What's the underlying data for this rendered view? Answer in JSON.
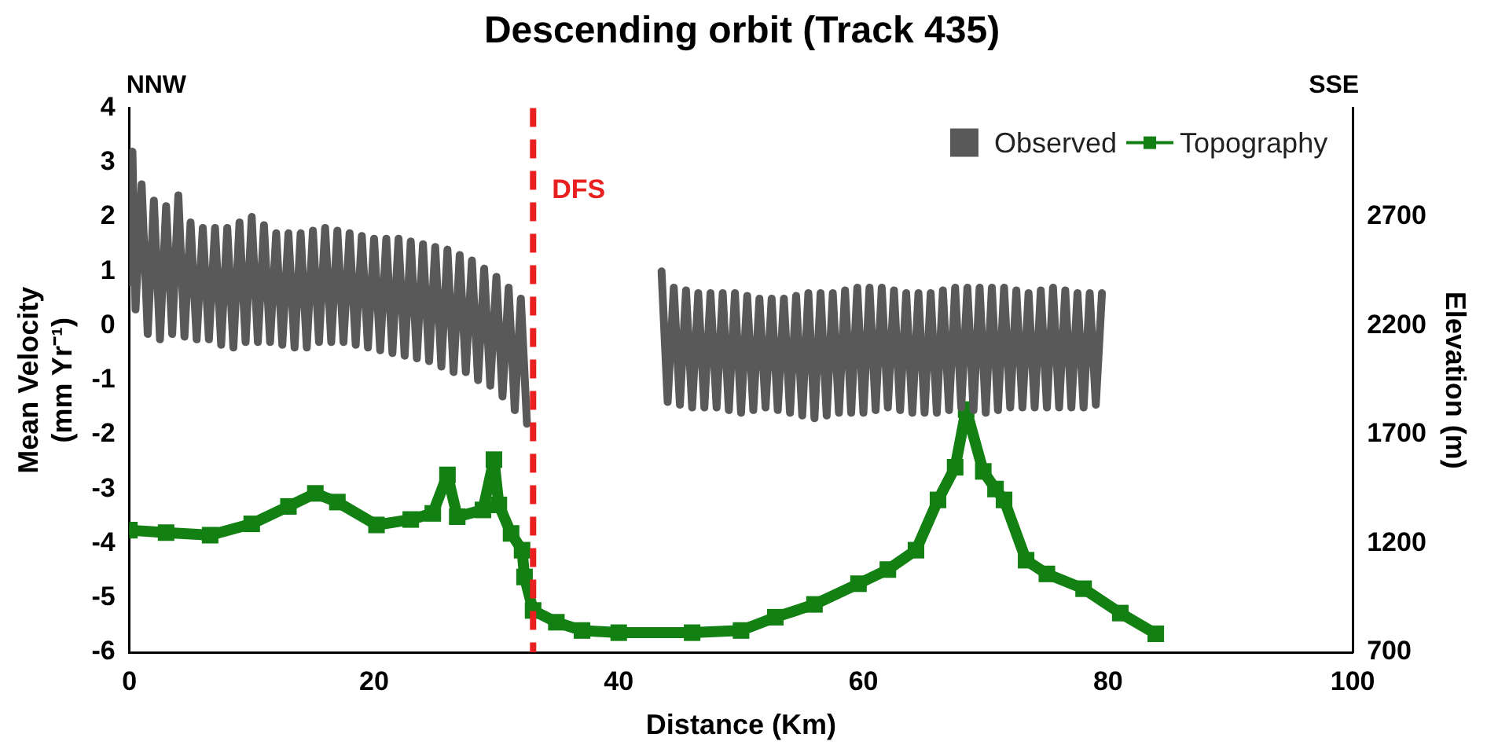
{
  "chart_data": {
    "type": "line",
    "title": "Descending orbit (Track 435)",
    "xlabel": "Distance (Km)",
    "ylabel": "Mean Velocity\n(mm Yr⁻¹)",
    "y2label": "Elevation (m)",
    "annotations": [
      "NNW",
      "SSE"
    ],
    "xlim": [
      0,
      100
    ],
    "xticks": [
      0,
      20,
      40,
      60,
      80,
      100
    ],
    "ylim": [
      -6,
      4
    ],
    "yticks": [
      -6,
      -5,
      -4,
      -3,
      -2,
      -1,
      0,
      1,
      2,
      3,
      4
    ],
    "y2lim": [
      700,
      3200
    ],
    "y2ticks": [
      700,
      1200,
      1700,
      2200,
      2700
    ],
    "grid": false,
    "legend": "top right",
    "ref_lines": [
      {
        "axis": "x",
        "value": 33,
        "label": "DFS",
        "color": "#e8201f",
        "line_style": "dashed"
      }
    ],
    "series": [
      {
        "name": "Observed",
        "color": "#595959",
        "marker": "none",
        "x": [
          0,
          0.25,
          0.5,
          1,
          1.5,
          2,
          2.5,
          3,
          3.5,
          4,
          4.5,
          5,
          5.5,
          6,
          6.5,
          7,
          7.5,
          8,
          8.5,
          9,
          9.5,
          10,
          10.5,
          11,
          11.5,
          12,
          12.5,
          13,
          13.5,
          14,
          14.5,
          15,
          15.5,
          16,
          16.5,
          17,
          17.5,
          18,
          18.5,
          19,
          19.5,
          20,
          20.5,
          21,
          21.5,
          22,
          22.5,
          23,
          23.5,
          24,
          24.5,
          25,
          25.5,
          26,
          26.5,
          27,
          27.5,
          28,
          28.5,
          29,
          29.5,
          30,
          30.5,
          31,
          31.5,
          32,
          32.5,
          38,
          43.5,
          44,
          44.5,
          45,
          45.5,
          46,
          46.5,
          47,
          47.5,
          48,
          48.5,
          49,
          49.5,
          50,
          50.5,
          51,
          51.5,
          52,
          52.5,
          53,
          53.5,
          54,
          54.5,
          55,
          55.5,
          56,
          56.5,
          57,
          57.5,
          58,
          58.5,
          59,
          59.5,
          60,
          60.5,
          61,
          61.5,
          62,
          62.5,
          63,
          63.5,
          64,
          64.5,
          65,
          65.5,
          66,
          66.5,
          67,
          67.5,
          68,
          68.5,
          69,
          69.5,
          70,
          70.5,
          71,
          71.5,
          72,
          72.5,
          73,
          73.5,
          74,
          74.5,
          75,
          75.5,
          76,
          76.5,
          77,
          77.5,
          78,
          78.5,
          79,
          79.5
        ],
        "values": [
          0.8,
          3.2,
          0.3,
          2.6,
          -0.15,
          2.3,
          -0.25,
          2.2,
          -0.15,
          2.4,
          -0.2,
          1.9,
          -0.25,
          1.8,
          -0.25,
          1.8,
          -0.35,
          1.8,
          -0.4,
          1.9,
          -0.3,
          2.0,
          -0.3,
          1.85,
          -0.3,
          1.7,
          -0.35,
          1.7,
          -0.4,
          1.7,
          -0.4,
          1.75,
          -0.3,
          1.8,
          -0.3,
          1.75,
          -0.3,
          1.7,
          -0.35,
          1.65,
          -0.4,
          1.6,
          -0.45,
          1.6,
          -0.5,
          1.6,
          -0.55,
          1.55,
          -0.6,
          1.5,
          -0.65,
          1.45,
          -0.75,
          1.4,
          -0.85,
          1.3,
          -0.85,
          1.2,
          -1.0,
          1.05,
          -1.1,
          0.9,
          -1.3,
          0.7,
          -1.55,
          0.5,
          -1.8,
          null,
          1.0,
          -1.4,
          0.7,
          -1.45,
          0.65,
          -1.5,
          0.6,
          -1.5,
          0.6,
          -1.5,
          0.6,
          -1.55,
          0.6,
          -1.6,
          0.55,
          -1.55,
          0.5,
          -1.5,
          0.5,
          -1.55,
          0.5,
          -1.6,
          0.55,
          -1.65,
          0.6,
          -1.7,
          0.6,
          -1.65,
          0.6,
          -1.6,
          0.65,
          -1.6,
          0.7,
          -1.6,
          0.7,
          -1.55,
          0.7,
          -1.5,
          0.65,
          -1.55,
          0.6,
          -1.6,
          0.6,
          -1.6,
          0.6,
          -1.6,
          0.65,
          -1.55,
          0.7,
          -1.5,
          0.7,
          -1.55,
          0.7,
          -1.6,
          0.7,
          -1.55,
          0.7,
          -1.5,
          0.65,
          -1.5,
          0.6,
          -1.5,
          0.65,
          -1.5,
          0.7,
          -1.5,
          0.65,
          -1.5,
          0.6,
          -1.5,
          0.6,
          -1.45,
          0.6
        ]
      },
      {
        "name": "Topography",
        "axis": "y2",
        "color": "#128012",
        "marker": "square",
        "x": [
          0,
          3,
          6.6,
          10,
          13,
          15.2,
          17,
          20.2,
          23,
          24.8,
          26,
          26.8,
          28.9,
          29.8,
          30.2,
          31.2,
          32.1,
          32.3,
          33,
          34.9,
          37,
          40,
          46,
          50,
          52.8,
          56,
          59.6,
          62,
          64.3,
          66.1,
          67.5,
          68.4,
          69.8,
          70.8,
          71.5,
          73.3,
          75,
          78,
          81,
          83.9
        ],
        "values": [
          1261,
          1250,
          1238,
          1290,
          1370,
          1430,
          1390,
          1285,
          1310,
          1338,
          1515,
          1323,
          1354,
          1585,
          1377,
          1246,
          1169,
          1046,
          892,
          838,
          800,
          790,
          790,
          800,
          861,
          920,
          1015,
          1080,
          1169,
          1400,
          1550,
          1815,
          1531,
          1450,
          1400,
          1123,
          1060,
          992,
          880,
          785
        ]
      }
    ]
  }
}
